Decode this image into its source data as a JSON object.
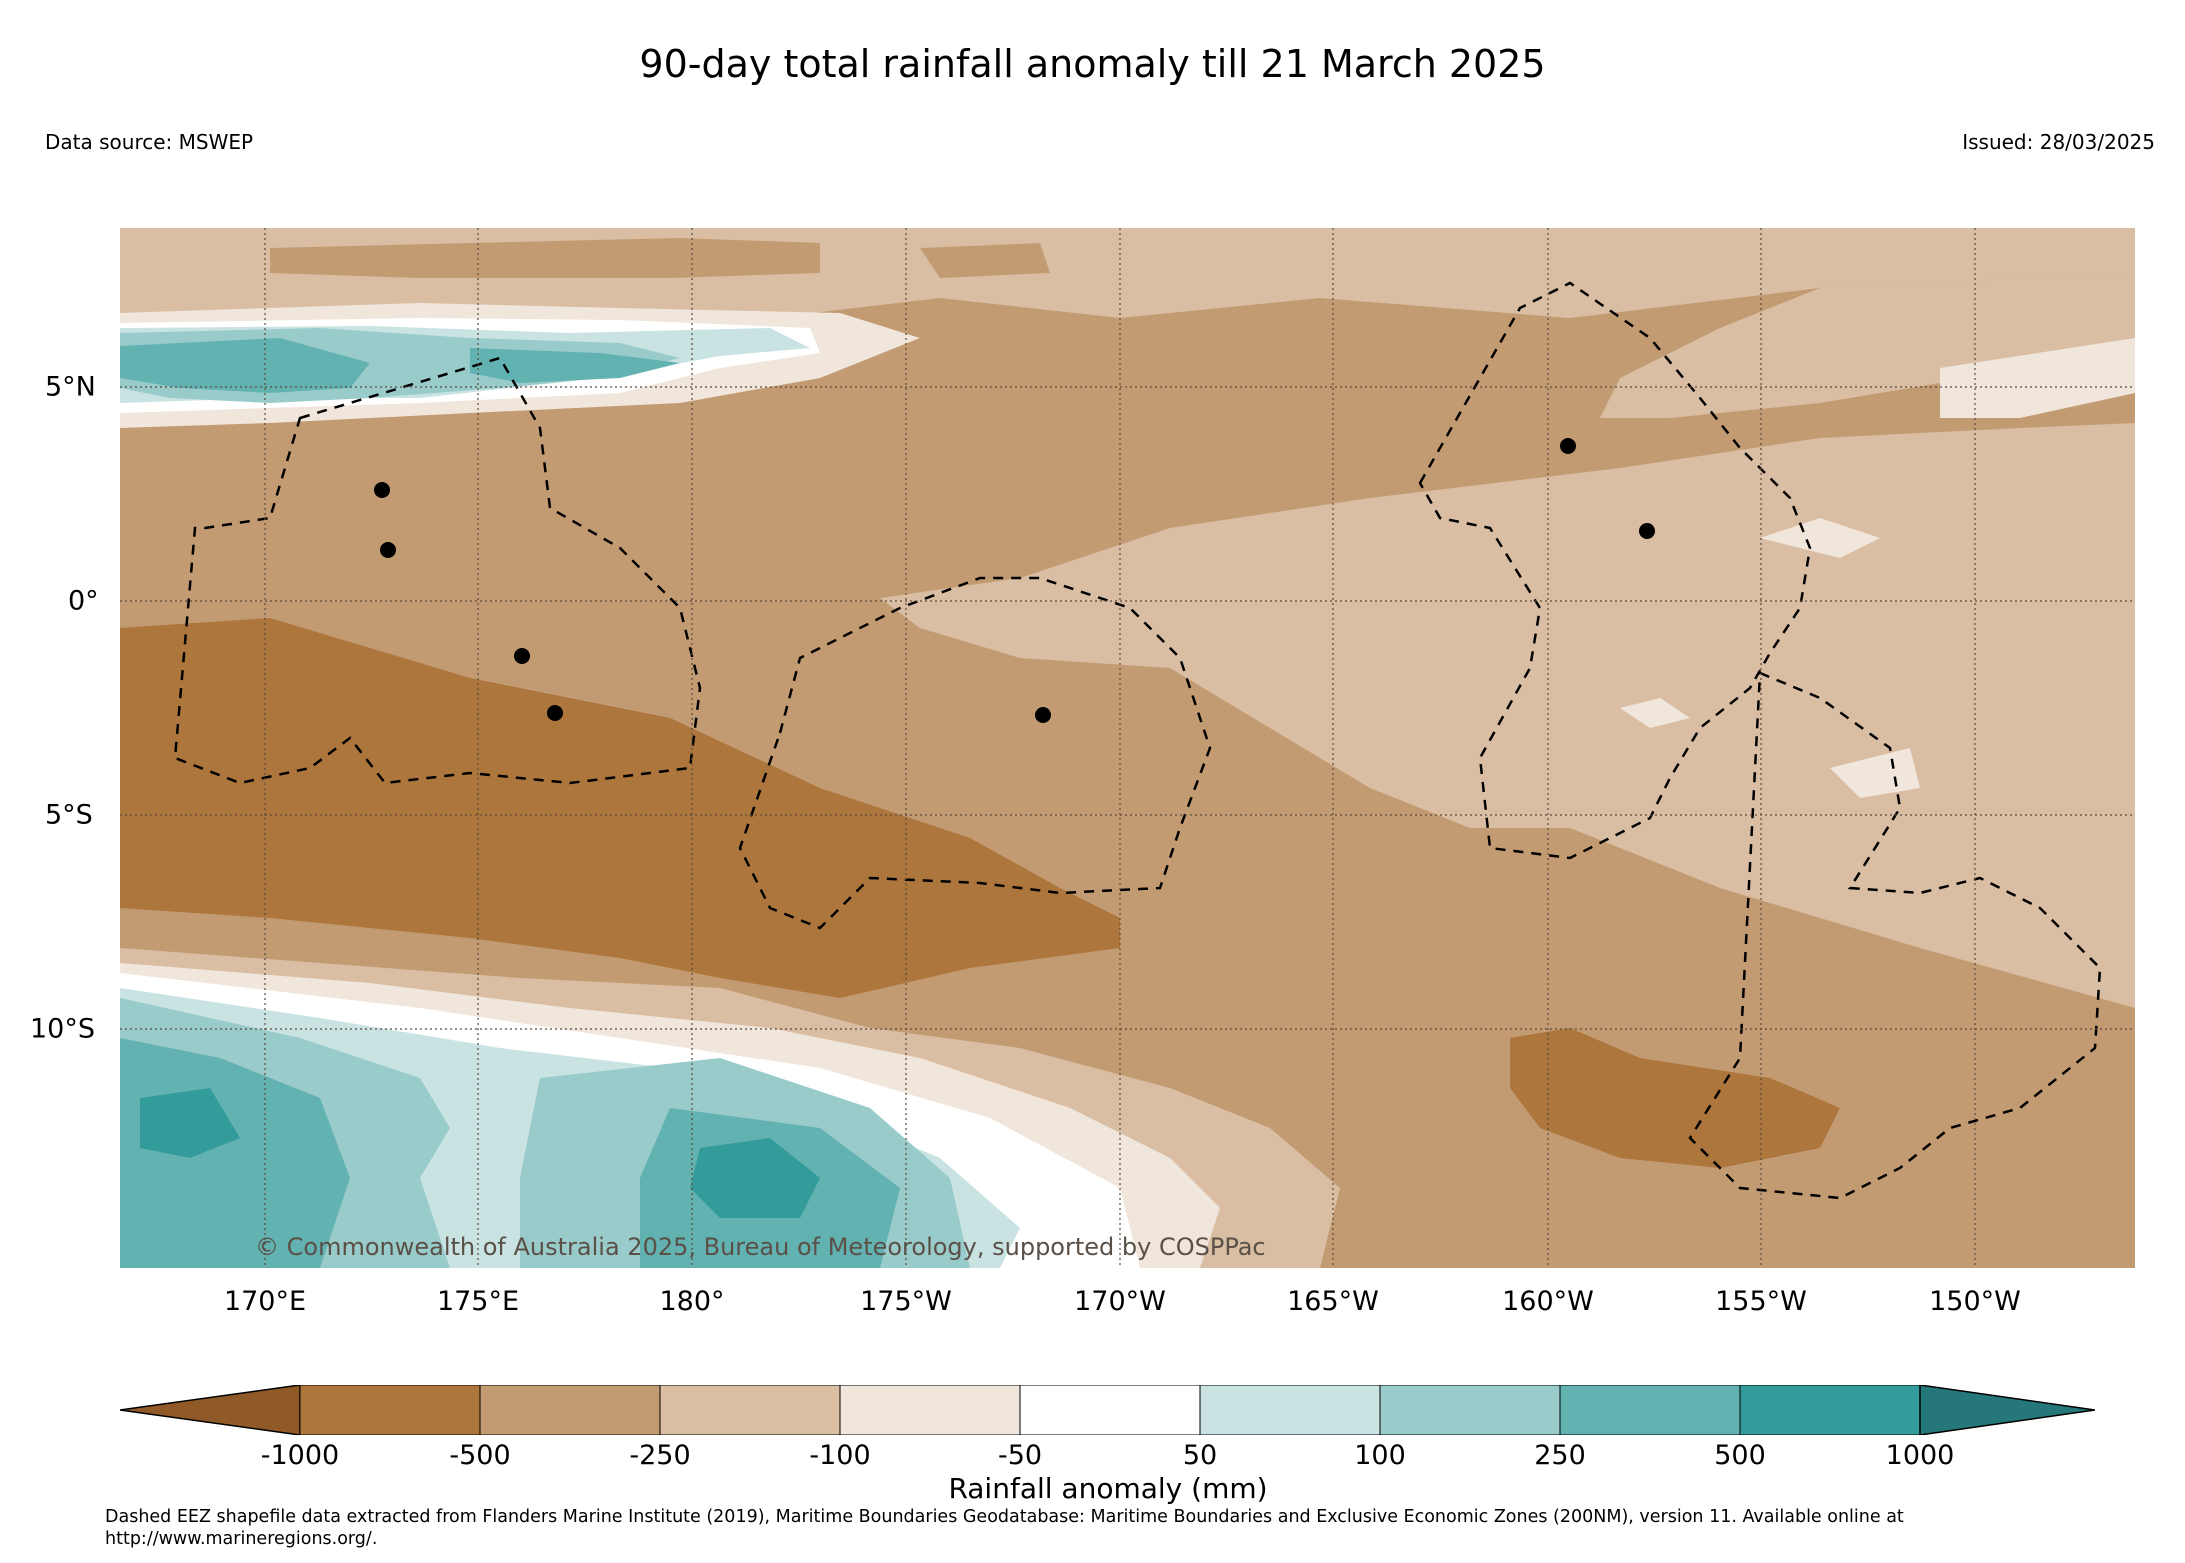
{
  "title": "90-day total rainfall anomaly till 21 March 2025",
  "data_source": "Data source: MSWEP",
  "issued": "Issued: 28/03/2025",
  "copyright": "© Commonwealth of Australia 2025, Bureau of Meteorology, supported by COSPPac",
  "map": {
    "lon_range_east": [
      166.6,
      213.8
    ],
    "lat_range": [
      -15.6,
      8.7
    ],
    "lon_labels": [
      "170°E",
      "175°E",
      "180°",
      "175°W",
      "170°W",
      "165°W",
      "160°W",
      "155°W",
      "150°W"
    ],
    "lat_labels": [
      "5°N",
      "0°",
      "5°S",
      "10°S"
    ],
    "gridlines": "dotted"
  },
  "colorbar": {
    "title": "Rainfall anomaly (mm)",
    "tick_labels": [
      "-1000",
      "-500",
      "-250",
      "-100",
      "-50",
      "50",
      "100",
      "250",
      "500",
      "1000"
    ],
    "colors": [
      "#8f5a28",
      "#ad763d",
      "#c39b72",
      "#d9bea4",
      "#f1e6dc",
      "#ffffff",
      "#c9e3e3",
      "#99cbcb",
      "#63b2b2",
      "#339b99",
      "#26777a"
    ],
    "extend": "both"
  },
  "footnote": "Dashed EEZ shapefile data extracted from Flanders Marine Institute (2019), Maritime Boundaries Geodatabase: Maritime Boundaries and Exclusive Economic Zones (200NM), version 11. Available online at http://www.marineregions.org/."
}
